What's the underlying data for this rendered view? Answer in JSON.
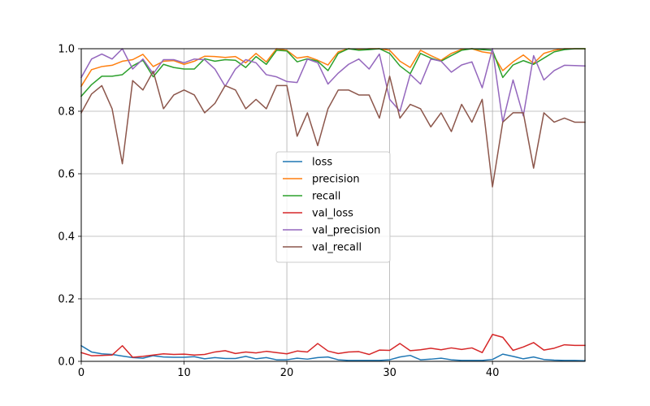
{
  "chart_data": {
    "type": "line",
    "title": "",
    "xlabel": "",
    "ylabel": "",
    "xlim": [
      0,
      49
    ],
    "ylim": [
      0,
      1.0
    ],
    "xticks": [
      "0",
      "10",
      "20",
      "30",
      "40"
    ],
    "xtick_values": [
      0,
      10,
      20,
      30,
      40
    ],
    "yticks": [
      "0.0",
      "0.2",
      "0.4",
      "0.6",
      "0.8",
      "1.0"
    ],
    "ytick_values": [
      0,
      0.2,
      0.4,
      0.6,
      0.8,
      1.0
    ],
    "grid": true,
    "legend_position": "center",
    "x": [
      0,
      1,
      2,
      3,
      4,
      5,
      6,
      7,
      8,
      9,
      10,
      11,
      12,
      13,
      14,
      15,
      16,
      17,
      18,
      19,
      20,
      21,
      22,
      23,
      24,
      25,
      26,
      27,
      28,
      29,
      30,
      31,
      32,
      33,
      34,
      35,
      36,
      37,
      38,
      39,
      40,
      41,
      42,
      43,
      44,
      45,
      46,
      47,
      48,
      49
    ],
    "series": [
      {
        "name": "loss",
        "color": "#1f77b4",
        "values": [
          0.05,
          0.03,
          0.024,
          0.022,
          0.017,
          0.012,
          0.01,
          0.018,
          0.014,
          0.013,
          0.013,
          0.015,
          0.008,
          0.012,
          0.009,
          0.009,
          0.016,
          0.008,
          0.012,
          0.005,
          0.005,
          0.01,
          0.007,
          0.012,
          0.014,
          0.005,
          0.003,
          0.003,
          0.003,
          0.003,
          0.005,
          0.014,
          0.019,
          0.005,
          0.007,
          0.01,
          0.005,
          0.003,
          0.003,
          0.003,
          0.006,
          0.023,
          0.016,
          0.008,
          0.014,
          0.006,
          0.004,
          0.003,
          0.003,
          0.002
        ]
      },
      {
        "name": "precision",
        "color": "#ff7f0e",
        "values": [
          0.88,
          0.933,
          0.943,
          0.947,
          0.96,
          0.965,
          0.982,
          0.943,
          0.96,
          0.962,
          0.95,
          0.96,
          0.976,
          0.975,
          0.972,
          0.975,
          0.955,
          0.985,
          0.958,
          1.0,
          0.995,
          0.97,
          0.975,
          0.963,
          0.948,
          0.99,
          1.0,
          0.997,
          1.0,
          1.0,
          0.995,
          0.96,
          0.94,
          0.995,
          0.978,
          0.963,
          0.985,
          0.998,
          1.0,
          0.99,
          0.985,
          0.93,
          0.958,
          0.98,
          0.953,
          0.985,
          0.995,
          1.0,
          1.0,
          1.0
        ]
      },
      {
        "name": "recall",
        "color": "#2ca02c",
        "values": [
          0.848,
          0.885,
          0.912,
          0.912,
          0.917,
          0.945,
          0.963,
          0.91,
          0.95,
          0.94,
          0.935,
          0.935,
          0.968,
          0.96,
          0.965,
          0.963,
          0.94,
          0.975,
          0.95,
          0.995,
          0.993,
          0.958,
          0.968,
          0.96,
          0.93,
          0.985,
          1.0,
          0.995,
          0.997,
          1.0,
          0.985,
          0.945,
          0.92,
          0.985,
          0.97,
          0.96,
          0.978,
          0.995,
          1.0,
          0.997,
          0.995,
          0.908,
          0.948,
          0.962,
          0.95,
          0.97,
          0.99,
          0.997,
          1.0,
          1.0
        ]
      },
      {
        "name": "val_loss",
        "color": "#d62728",
        "values": [
          0.028,
          0.018,
          0.019,
          0.02,
          0.05,
          0.013,
          0.016,
          0.02,
          0.024,
          0.022,
          0.023,
          0.02,
          0.022,
          0.03,
          0.034,
          0.025,
          0.03,
          0.027,
          0.032,
          0.028,
          0.024,
          0.033,
          0.03,
          0.057,
          0.033,
          0.025,
          0.03,
          0.031,
          0.022,
          0.036,
          0.035,
          0.057,
          0.034,
          0.037,
          0.042,
          0.037,
          0.043,
          0.038,
          0.043,
          0.028,
          0.086,
          0.077,
          0.035,
          0.046,
          0.06,
          0.036,
          0.042,
          0.053,
          0.051,
          0.051
        ]
      },
      {
        "name": "val_precision",
        "color": "#9467bd",
        "values": [
          0.908,
          0.967,
          0.983,
          0.967,
          1.0,
          0.935,
          0.967,
          0.92,
          0.965,
          0.965,
          0.955,
          0.967,
          0.965,
          0.935,
          0.88,
          0.935,
          0.965,
          0.955,
          0.917,
          0.91,
          0.895,
          0.892,
          0.967,
          0.955,
          0.887,
          0.922,
          0.95,
          0.967,
          0.935,
          0.983,
          0.838,
          0.8,
          0.918,
          0.887,
          0.967,
          0.96,
          0.925,
          0.948,
          0.958,
          0.875,
          1.0,
          0.765,
          0.9,
          0.785,
          0.978,
          0.9,
          0.93,
          0.947,
          0.946,
          0.945
        ]
      },
      {
        "name": "val_recall",
        "color": "#8c564b",
        "values": [
          0.795,
          0.855,
          0.882,
          0.808,
          0.632,
          0.898,
          0.868,
          0.928,
          0.808,
          0.852,
          0.868,
          0.852,
          0.795,
          0.825,
          0.882,
          0.868,
          0.808,
          0.838,
          0.808,
          0.882,
          0.882,
          0.72,
          0.795,
          0.69,
          0.808,
          0.868,
          0.868,
          0.852,
          0.852,
          0.778,
          0.912,
          0.778,
          0.822,
          0.808,
          0.75,
          0.795,
          0.735,
          0.822,
          0.765,
          0.838,
          0.558,
          0.765,
          0.795,
          0.795,
          0.618,
          0.795,
          0.765,
          0.778,
          0.765,
          0.765
        ]
      }
    ]
  }
}
